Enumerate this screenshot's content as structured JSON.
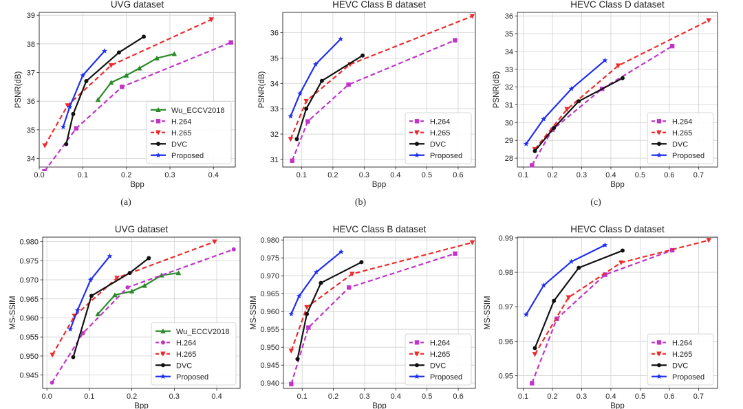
{
  "figure": {
    "subcaptions": [
      "(a)",
      "(b)",
      "(c)"
    ]
  },
  "colors": {
    "Wu_ECCV2018": "#2a8a2a",
    "H.264": "#c034c8",
    "H.265": "#f02a2a",
    "DVC": "#111111",
    "Proposed": "#1f2ff0"
  },
  "chart_data": [
    {
      "type": "line",
      "title": "UVG dataset",
      "xlabel": "Bpp",
      "ylabel": "PSNR(dB)",
      "xlim": [
        0.0,
        0.45
      ],
      "ylim": [
        33.7,
        39.1
      ],
      "xticks": [
        0.0,
        0.1,
        0.2,
        0.3,
        0.4
      ],
      "xtick_labels": [
        "0.0",
        "0.1",
        "0.2",
        "0.3",
        "0.4"
      ],
      "yticks": [
        34,
        35,
        36,
        37,
        38,
        39
      ],
      "ytick_labels": [
        "34",
        "35",
        "36",
        "37",
        "38",
        "39"
      ],
      "legend_position": "lower-right",
      "series": [
        {
          "name": "Wu_ECCV2018",
          "style": "solid",
          "marker": "^-",
          "x": [
            0.135,
            0.165,
            0.2,
            0.23,
            0.27,
            0.31
          ],
          "y": [
            36.05,
            36.65,
            36.9,
            37.15,
            37.5,
            37.65
          ]
        },
        {
          "name": "H.264",
          "style": "dashed",
          "marker": "s",
          "x": [
            0.012,
            0.085,
            0.19,
            0.44
          ],
          "y": [
            33.55,
            35.05,
            36.5,
            38.05
          ]
        },
        {
          "name": "H.265",
          "style": "dashed",
          "marker": "v",
          "x": [
            0.013,
            0.065,
            0.165,
            0.395
          ],
          "y": [
            34.45,
            35.85,
            37.25,
            38.85
          ]
        },
        {
          "name": "DVC",
          "style": "solid",
          "marker": "o",
          "x": [
            0.062,
            0.078,
            0.108,
            0.183,
            0.24
          ],
          "y": [
            34.5,
            35.55,
            36.7,
            37.7,
            38.25
          ]
        },
        {
          "name": "Proposed",
          "style": "solid",
          "marker": "*",
          "x": [
            0.055,
            0.07,
            0.1,
            0.15
          ],
          "y": [
            35.1,
            35.8,
            36.9,
            37.75
          ]
        }
      ]
    },
    {
      "type": "line",
      "title": "HEVC Class B dataset",
      "xlabel": "Bpp",
      "ylabel": "PSNR(dB)",
      "xlim": [
        0.04,
        0.655
      ],
      "ylim": [
        30.7,
        36.8
      ],
      "xticks": [
        0.1,
        0.2,
        0.3,
        0.4,
        0.5,
        0.6
      ],
      "xtick_labels": [
        "0.1",
        "0.2",
        "0.3",
        "0.4",
        "0.5",
        "0.6"
      ],
      "yticks": [
        31,
        32,
        33,
        34,
        35,
        36
      ],
      "ytick_labels": [
        "31",
        "32",
        "33",
        "34",
        "35",
        "36"
      ],
      "legend_position": "lower-right",
      "series": [
        {
          "name": "H.264",
          "style": "dashed",
          "marker": "s",
          "x": [
            0.07,
            0.12,
            0.25,
            0.59
          ],
          "y": [
            30.95,
            32.5,
            33.95,
            35.7
          ]
        },
        {
          "name": "H.265",
          "style": "dashed",
          "marker": "v",
          "x": [
            0.065,
            0.115,
            0.255,
            0.645
          ],
          "y": [
            31.8,
            33.3,
            34.75,
            36.65
          ]
        },
        {
          "name": "DVC",
          "style": "solid",
          "marker": "o",
          "x": [
            0.085,
            0.115,
            0.165,
            0.295
          ],
          "y": [
            31.8,
            33.0,
            34.1,
            35.1
          ]
        },
        {
          "name": "Proposed",
          "style": "solid",
          "marker": "*",
          "x": [
            0.065,
            0.095,
            0.145,
            0.225
          ],
          "y": [
            32.7,
            33.6,
            34.75,
            35.75
          ]
        }
      ]
    },
    {
      "type": "line",
      "title": "HEVC Class D dataset",
      "xlabel": "Bpp",
      "ylabel": "PSNR(dB)",
      "xlim": [
        0.08,
        0.765
      ],
      "ylim": [
        27.5,
        36.2
      ],
      "xticks": [
        0.1,
        0.2,
        0.3,
        0.4,
        0.5,
        0.6,
        0.7
      ],
      "xtick_labels": [
        "0.1",
        "0.2",
        "0.3",
        "0.4",
        "0.5",
        "0.6",
        "0.7"
      ],
      "yticks": [
        28,
        29,
        30,
        31,
        32,
        33,
        34,
        35,
        36
      ],
      "ytick_labels": [
        "28",
        "29",
        "30",
        "31",
        "32",
        "33",
        "34",
        "35",
        "36"
      ],
      "legend_position": "lower-right",
      "series": [
        {
          "name": "H.264",
          "style": "dashed",
          "marker": "s",
          "x": [
            0.13,
            0.2,
            0.37,
            0.61
          ],
          "y": [
            27.6,
            29.6,
            31.9,
            34.3
          ]
        },
        {
          "name": "H.265",
          "style": "dashed",
          "marker": "v",
          "x": [
            0.14,
            0.25,
            0.425,
            0.735
          ],
          "y": [
            28.5,
            30.75,
            33.2,
            35.75
          ]
        },
        {
          "name": "DVC",
          "style": "solid",
          "marker": "o",
          "x": [
            0.14,
            0.205,
            0.29,
            0.44
          ],
          "y": [
            28.4,
            29.7,
            31.2,
            32.5
          ]
        },
        {
          "name": "Proposed",
          "style": "solid",
          "marker": "*",
          "x": [
            0.11,
            0.17,
            0.265,
            0.38
          ],
          "y": [
            28.8,
            30.2,
            31.9,
            33.5
          ]
        }
      ]
    },
    {
      "type": "line",
      "title": "UVG dataset",
      "xlabel": "Bpp",
      "ylabel": "MS-SSIM",
      "xlim": [
        -0.01,
        0.455
      ],
      "ylim": [
        0.9415,
        0.9812
      ],
      "xticks": [
        0.0,
        0.1,
        0.2,
        0.3,
        0.4
      ],
      "xtick_labels": [
        "0.0",
        "0.1",
        "0.2",
        "0.3",
        "0.4"
      ],
      "yticks": [
        0.945,
        0.95,
        0.955,
        0.96,
        0.965,
        0.97,
        0.975,
        0.98
      ],
      "ytick_labels": [
        "0.945",
        "0.950",
        "0.955",
        "0.960",
        "0.965",
        "0.970",
        "0.975",
        "0.980"
      ],
      "legend_position": "lower-right",
      "series": [
        {
          "name": "Wu_ECCV2018",
          "style": "solid",
          "marker": "^-",
          "x": [
            0.12,
            0.16,
            0.2,
            0.23,
            0.27,
            0.31
          ],
          "y": [
            0.961,
            0.966,
            0.967,
            0.9685,
            0.9712,
            0.9718
          ]
        },
        {
          "name": "H.264",
          "style": "dashed",
          "marker": "o",
          "x": [
            0.012,
            0.085,
            0.19,
            0.44
          ],
          "y": [
            0.943,
            0.956,
            0.968,
            0.978
          ]
        },
        {
          "name": "H.265",
          "style": "dashed",
          "marker": "v",
          "x": [
            0.013,
            0.065,
            0.165,
            0.395
          ],
          "y": [
            0.9503,
            0.9605,
            0.9705,
            0.98
          ]
        },
        {
          "name": "DVC",
          "style": "solid",
          "marker": "o",
          "x": [
            0.062,
            0.105,
            0.195,
            0.24
          ],
          "y": [
            0.9497,
            0.9658,
            0.9718,
            0.9757
          ]
        },
        {
          "name": "Proposed",
          "style": "solid",
          "marker": "*",
          "x": [
            0.055,
            0.072,
            0.103,
            0.148
          ],
          "y": [
            0.957,
            0.962,
            0.97,
            0.9762
          ]
        }
      ]
    },
    {
      "type": "line",
      "title": "HEVC Class B dataset",
      "xlabel": "Bpp",
      "ylabel": "MS-SSIM",
      "xlim": [
        0.04,
        0.655
      ],
      "ylim": [
        0.9385,
        0.9808
      ],
      "xticks": [
        0.1,
        0.2,
        0.3,
        0.4,
        0.5,
        0.6
      ],
      "xtick_labels": [
        "0.1",
        "0.2",
        "0.3",
        "0.4",
        "0.5",
        "0.6"
      ],
      "yticks": [
        0.94,
        0.945,
        0.95,
        0.955,
        0.96,
        0.965,
        0.97,
        0.975,
        0.98
      ],
      "ytick_labels": [
        "0.940",
        "0.945",
        "0.950",
        "0.955",
        "0.960",
        "0.965",
        "0.970",
        "0.975",
        "0.980"
      ],
      "legend_position": "lower-right",
      "series": [
        {
          "name": "H.264",
          "style": "dashed",
          "marker": "s",
          "x": [
            0.065,
            0.12,
            0.25,
            0.59
          ],
          "y": [
            0.9397,
            0.9555,
            0.9667,
            0.9762
          ]
        },
        {
          "name": "H.265",
          "style": "dashed",
          "marker": "v",
          "x": [
            0.065,
            0.115,
            0.26,
            0.645
          ],
          "y": [
            0.949,
            0.9612,
            0.9705,
            0.9793
          ]
        },
        {
          "name": "DVC",
          "style": "solid",
          "marker": "o",
          "x": [
            0.085,
            0.115,
            0.16,
            0.29
          ],
          "y": [
            0.9467,
            0.9593,
            0.968,
            0.9738
          ]
        },
        {
          "name": "Proposed",
          "style": "solid",
          "marker": "*",
          "x": [
            0.065,
            0.09,
            0.145,
            0.225
          ],
          "y": [
            0.9593,
            0.9643,
            0.971,
            0.9767
          ]
        }
      ]
    },
    {
      "type": "line",
      "title": "HEVC Class D dataset",
      "xlabel": "Bpp",
      "ylabel": "MS-SSIM",
      "xlim": [
        0.08,
        0.765
      ],
      "ylim": [
        0.9463,
        0.9902
      ],
      "xticks": [
        0.1,
        0.2,
        0.3,
        0.4,
        0.5,
        0.6,
        0.7
      ],
      "xtick_labels": [
        "0.1",
        "0.2",
        "0.3",
        "0.4",
        "0.5",
        "0.6",
        "0.7"
      ],
      "yticks": [
        0.95,
        0.96,
        0.97,
        0.98,
        0.99
      ],
      "ytick_labels": [
        "0.95",
        "0.96",
        "0.97",
        "0.98",
        "0.99"
      ],
      "legend_position": "lower-right",
      "series": [
        {
          "name": "H.264",
          "style": "dashed",
          "marker": "s",
          "x": [
            0.13,
            0.215,
            0.38,
            0.61
          ],
          "y": [
            0.9478,
            0.9665,
            0.9793,
            0.9864
          ]
        },
        {
          "name": "H.265",
          "style": "dashed",
          "marker": "v",
          "x": [
            0.14,
            0.255,
            0.435,
            0.735
          ],
          "y": [
            0.9562,
            0.9727,
            0.9828,
            0.9893
          ]
        },
        {
          "name": "DVC",
          "style": "solid",
          "marker": "o",
          "x": [
            0.14,
            0.205,
            0.29,
            0.44
          ],
          "y": [
            0.958,
            0.9717,
            0.9813,
            0.9863
          ]
        },
        {
          "name": "Proposed",
          "style": "solid",
          "marker": "*",
          "x": [
            0.11,
            0.17,
            0.265,
            0.38
          ],
          "y": [
            0.9677,
            0.9762,
            0.9831,
            0.9879
          ]
        }
      ]
    }
  ]
}
